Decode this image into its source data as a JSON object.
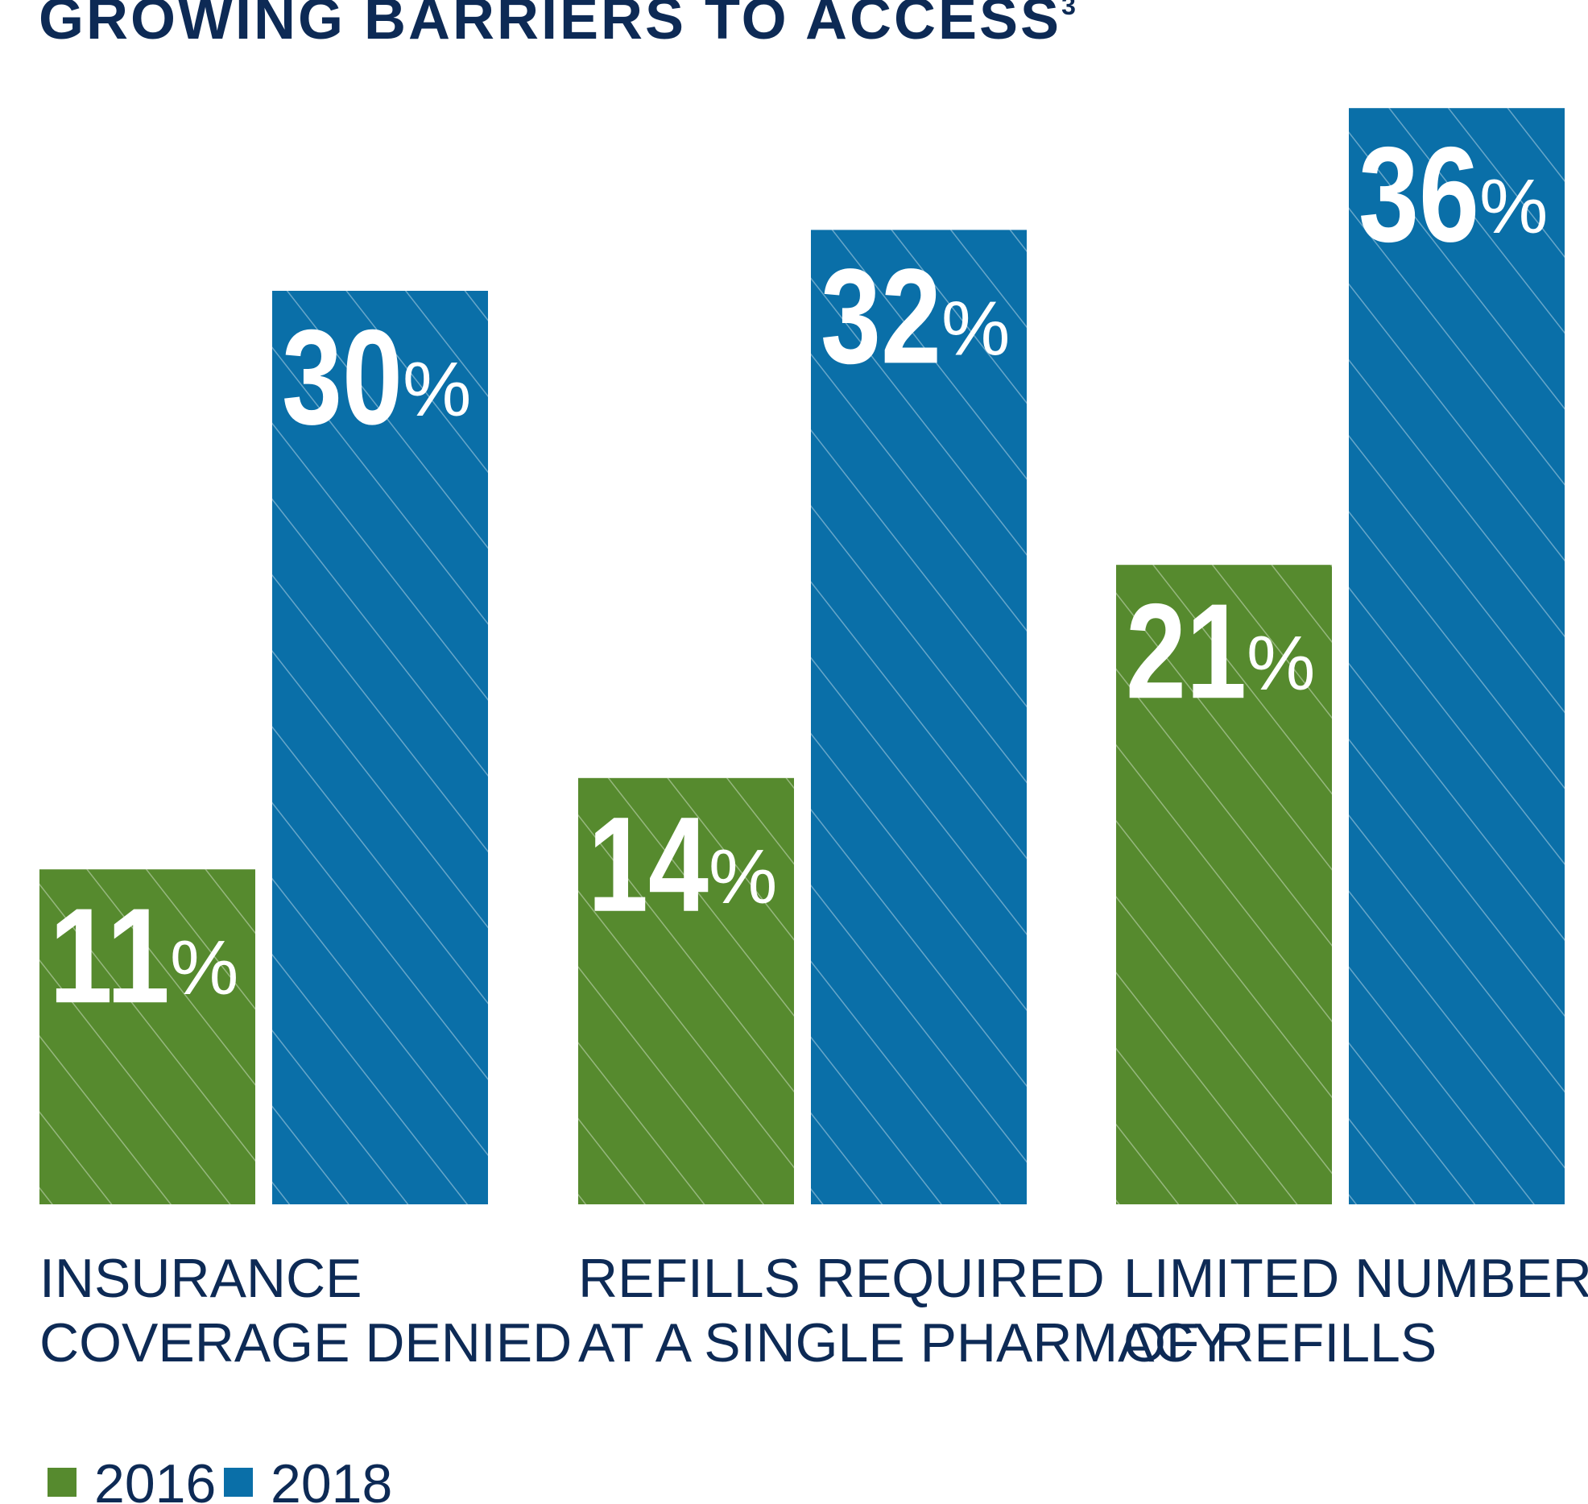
{
  "chart_data": {
    "type": "bar",
    "title": "GROWING BARRIERS TO ACCESS",
    "title_superscript": "3",
    "categories": [
      [
        "INSURANCE",
        "COVERAGE DENIED"
      ],
      [
        "REFILLS REQUIRED",
        "AT A SINGLE PHARMACY"
      ],
      [
        "LIMITED NUMBER",
        "OF REFILLS"
      ]
    ],
    "series": [
      {
        "name": "2016",
        "color": "#568a2e",
        "values": [
          11,
          14,
          21
        ]
      },
      {
        "name": "2018",
        "color": "#0a6fa8",
        "values": [
          30,
          32,
          36
        ]
      }
    ],
    "value_suffix": "%",
    "ylim": [
      0,
      37
    ],
    "grid": false,
    "pattern": "diagonal-hatch",
    "legend_position": "bottom-left"
  }
}
